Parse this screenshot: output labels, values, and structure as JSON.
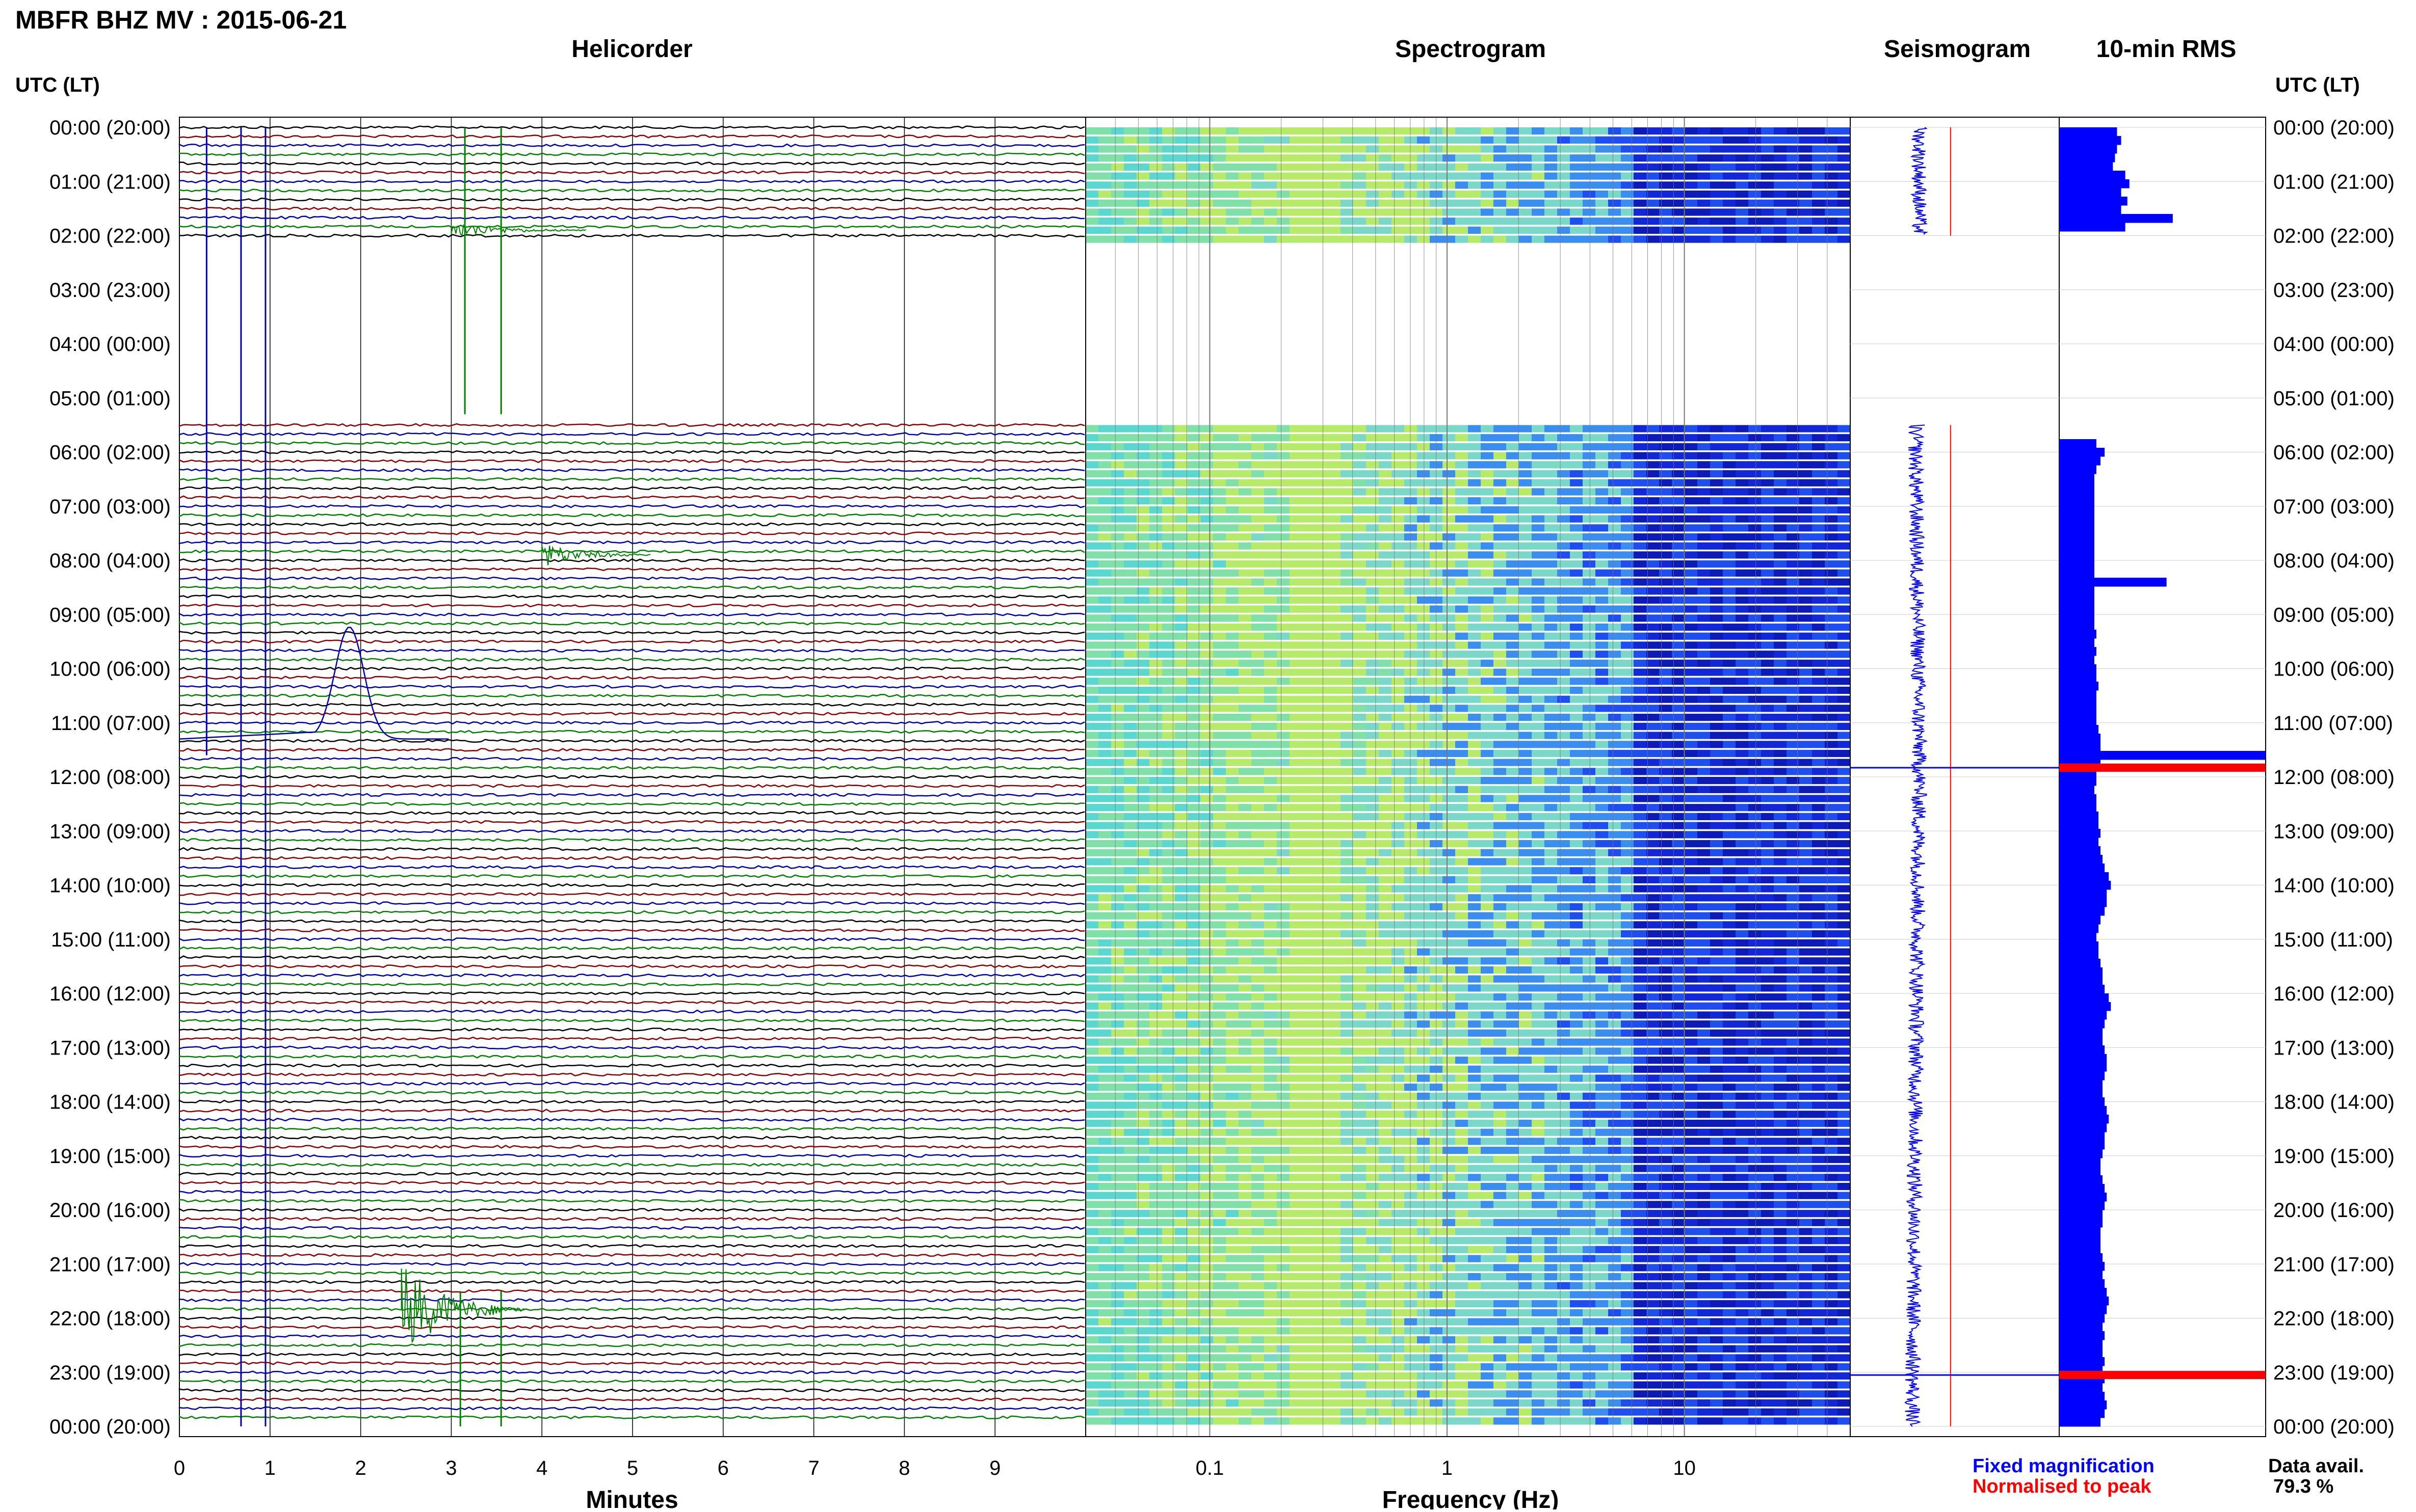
{
  "header": {
    "station_title": "MBFR BHZ MV : 2015-06-21",
    "utc_lt_left": "UTC (LT)",
    "utc_lt_right": "UTC (LT)"
  },
  "panels": {
    "helicorder": "Helicorder",
    "spectrogram": "Spectrogram",
    "seismogram": "Seismogram",
    "rms": "10-min RMS"
  },
  "axes": {
    "minutes_label": "Minutes",
    "frequency_label": "Frequency (Hz)"
  },
  "legend": {
    "fixed": "Fixed magnification",
    "normalised": "Normalised to peak",
    "fixed_color": "#0000ff",
    "normalised_color": "#ff0000"
  },
  "availability": {
    "label": "Data avail.",
    "value": "79.3 %"
  },
  "colors": {
    "trace_cycle": [
      "#000000",
      "#8b0000",
      "#0000aa",
      "#008000"
    ],
    "rms_bar": "#0000ff",
    "rms_peak": "#ff0000",
    "seismogram_trace": "#0000ff",
    "seismogram_reference": "#ff0000"
  },
  "chart_data": {
    "type": "heatmap",
    "time_labels": [
      "00:00 (20:00)",
      "01:00 (21:00)",
      "02:00 (22:00)",
      "03:00 (23:00)",
      "04:00 (00:00)",
      "05:00 (01:00)",
      "06:00 (02:00)",
      "07:00 (03:00)",
      "08:00 (04:00)",
      "09:00 (05:00)",
      "10:00 (06:00)",
      "11:00 (07:00)",
      "12:00 (08:00)",
      "13:00 (09:00)",
      "14:00 (10:00)",
      "15:00 (11:00)",
      "16:00 (12:00)",
      "17:00 (13:00)",
      "18:00 (14:00)",
      "19:00 (15:00)",
      "20:00 (16:00)",
      "21:00 (17:00)",
      "22:00 (18:00)",
      "23:00 (19:00)",
      "00:00 (20:00)"
    ],
    "helicorder": {
      "x_ticks": [
        "0",
        "1",
        "2",
        "3",
        "4",
        "5",
        "6",
        "7",
        "8",
        "9"
      ],
      "xlim": [
        0,
        10
      ],
      "data_gap_hours": [
        2,
        5.5
      ]
    },
    "spectrogram": {
      "x_ticks": [
        "0.1",
        "1",
        "10"
      ],
      "xlim_hz": [
        0.03,
        50
      ],
      "scale": "log"
    },
    "rms": {
      "values": [
        0.28,
        0.3,
        0.28,
        0.27,
        0.26,
        0.32,
        0.34,
        0.3,
        0.33,
        0.3,
        0.55,
        0.32,
        0.0,
        0.0,
        0.0,
        0.0,
        0.0,
        0.0,
        0.0,
        0.0,
        0.0,
        0.0,
        0.0,
        0.0,
        0.0,
        0.0,
        0.0,
        0.0,
        0.0,
        0.0,
        0.0,
        0.0,
        0.0,
        0.0,
        0.0,
        0.0,
        0.18,
        0.22,
        0.2,
        0.18,
        0.17,
        0.17,
        0.17,
        0.17,
        0.17,
        0.17,
        0.17,
        0.17,
        0.17,
        0.17,
        0.17,
        0.17,
        0.52,
        0.17,
        0.17,
        0.17,
        0.17,
        0.17,
        0.18,
        0.17,
        0.18,
        0.17,
        0.18,
        0.18,
        0.19,
        0.18,
        0.18,
        0.18,
        0.18,
        0.19,
        0.2,
        0.2,
        1.0,
        0.2,
        0.18,
        0.18,
        0.17,
        0.18,
        0.18,
        0.19,
        0.19,
        0.2,
        0.19,
        0.2,
        0.21,
        0.22,
        0.24,
        0.25,
        0.23,
        0.23,
        0.22,
        0.2,
        0.19,
        0.18,
        0.19,
        0.19,
        0.2,
        0.21,
        0.21,
        0.22,
        0.24,
        0.25,
        0.23,
        0.22,
        0.21,
        0.21,
        0.22,
        0.23,
        0.23,
        0.22,
        0.21,
        0.21,
        0.22,
        0.23,
        0.24,
        0.23,
        0.22,
        0.22,
        0.21,
        0.2,
        0.2,
        0.21,
        0.22,
        0.23,
        0.22,
        0.21,
        0.21,
        0.2,
        0.2,
        0.2,
        0.21,
        0.22,
        0.21,
        0.22,
        0.23,
        0.24,
        0.23,
        0.22,
        0.21,
        0.22,
        0.21,
        0.21,
        0.22,
        0.21,
        0.22,
        0.21,
        0.22,
        0.23,
        0.22,
        0.2
      ],
      "peak_hours": [
        11.83,
        23.05
      ]
    }
  }
}
